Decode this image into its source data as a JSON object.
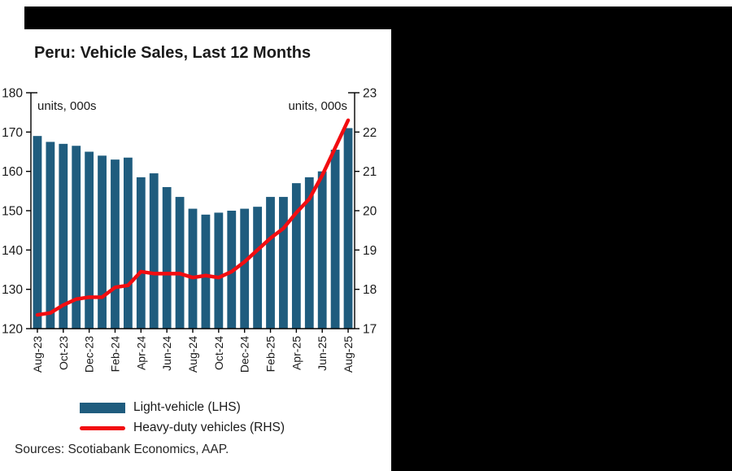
{
  "page": {
    "background_color": "#ffffff",
    "top_bar_color": "#000000",
    "right_block_color": "#000000"
  },
  "chart": {
    "title": "Peru: Vehicle Sales, Last 12 Months",
    "left_units_label": "units, 000s",
    "right_units_label": "units, 000s",
    "source_note": "Sources: Scotiabank Economics, AAP.",
    "legend": [
      {
        "label": "Light-vehicle (LHS)",
        "type": "bar",
        "color": "#1f5c7e"
      },
      {
        "label": "Heavy-duty vehicles (RHS)",
        "type": "line",
        "color": "#f20d11"
      }
    ]
  },
  "chart_data": {
    "type": "bar",
    "subtype": "combo-bar-line",
    "title": "Peru: Vehicle Sales, Last 12 Months",
    "categories": [
      "Aug-23",
      "Sep-23",
      "Oct-23",
      "Nov-23",
      "Dec-23",
      "Jan-24",
      "Feb-24",
      "Mar-24",
      "Apr-24",
      "May-24",
      "Jun-24",
      "Jul-24",
      "Aug-24",
      "Sep-24",
      "Oct-24",
      "Nov-24",
      "Dec-24",
      "Jan-25",
      "Feb-25",
      "Mar-25",
      "Apr-25",
      "May-25",
      "Jun-25",
      "Jul-25",
      "Aug-25"
    ],
    "x_tick_every": 2,
    "x_tick_labels": [
      "Aug-23",
      "Oct-23",
      "Dec-23",
      "Feb-24",
      "Apr-24",
      "Jun-24",
      "Aug-24",
      "Oct-24",
      "Dec-24",
      "Feb-25",
      "Apr-25",
      "Jun-25",
      "Aug-25"
    ],
    "series": [
      {
        "name": "Light-vehicle (LHS)",
        "type": "bar",
        "axis": "left",
        "color": "#1f5c7e",
        "values": [
          169,
          167.5,
          167,
          166.5,
          165,
          164,
          163,
          163.5,
          158.5,
          159.5,
          156,
          153.5,
          150.5,
          149,
          149.5,
          150,
          150.5,
          151,
          153.5,
          153.5,
          157,
          158.5,
          160,
          165.5,
          171
        ]
      },
      {
        "name": "Heavy-duty vehicles (RHS)",
        "type": "line",
        "axis": "right",
        "color": "#f20d11",
        "values": [
          17.35,
          17.4,
          17.6,
          17.75,
          17.8,
          17.8,
          18.05,
          18.1,
          18.45,
          18.4,
          18.4,
          18.4,
          18.3,
          18.35,
          18.3,
          18.45,
          18.7,
          19.0,
          19.3,
          19.55,
          19.95,
          20.3,
          20.9,
          21.6,
          22.3
        ]
      }
    ],
    "left_axis": {
      "min": 120,
      "max": 180,
      "step": 10,
      "label": "units, 000s"
    },
    "right_axis": {
      "min": 17,
      "max": 23,
      "step": 1,
      "label": "units, 000s"
    },
    "grid": false,
    "legend_position": "bottom"
  }
}
